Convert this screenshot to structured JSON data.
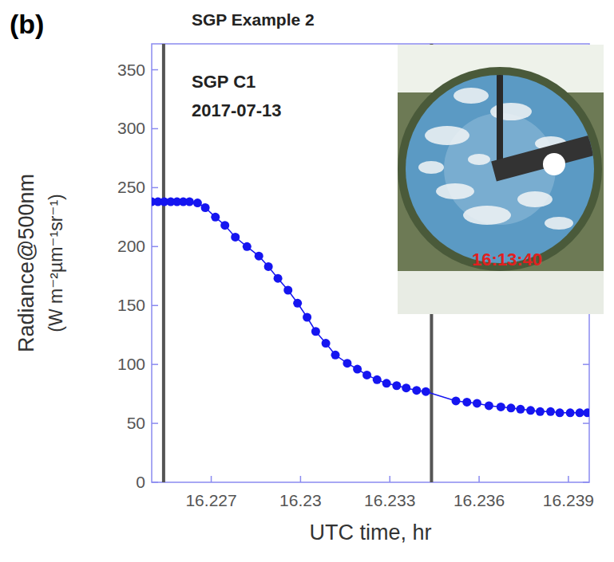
{
  "chart_data": {
    "type": "line",
    "panel_label": "(b)",
    "title": "SGP Example 2",
    "annotations": [
      "SGP C1",
      "2017-07-13"
    ],
    "inset_time": "16:13:40",
    "xlabel": "UTC time, hr",
    "ylabel": [
      "Radiance@500nm",
      "(W m⁻²µm⁻¹sr⁻¹)"
    ],
    "xlim": [
      16.225,
      16.2397
    ],
    "xticks": [
      16.227,
      16.23,
      16.233,
      16.236,
      16.239
    ],
    "ylim": [
      0,
      372
    ],
    "yticks": [
      0,
      50,
      100,
      150,
      200,
      250,
      300,
      350
    ],
    "grid": false,
    "marker": "circle",
    "line_style": "solid",
    "color": "#1515f0",
    "vertical_lines": [
      16.2254,
      16.2344
    ],
    "x": [
      16.225,
      16.22521,
      16.22542,
      16.22564,
      16.22585,
      16.22606,
      16.22627,
      16.22654,
      16.2268,
      16.22714,
      16.22746,
      16.22781,
      16.2282,
      16.2286,
      16.22892,
      16.22924,
      16.22958,
      16.2299,
      16.23022,
      16.23051,
      16.23085,
      16.23117,
      16.23157,
      16.23191,
      16.23223,
      16.23257,
      16.23289,
      16.23323,
      16.23355,
      16.2339,
      16.23421,
      16.23522,
      16.23559,
      16.23593,
      16.23633,
      16.23673,
      16.23707,
      16.23739,
      16.23773,
      16.23805,
      16.2384,
      16.23871,
      16.23906,
      16.23938,
      16.23964
    ],
    "values": [
      238,
      238,
      238,
      238,
      238,
      238,
      238,
      237,
      233,
      225,
      218,
      208,
      200,
      192,
      183,
      173,
      163,
      152,
      140,
      128,
      118,
      108,
      101,
      96,
      91,
      87,
      84,
      82,
      80,
      78,
      77,
      69,
      68,
      67,
      65,
      64,
      63,
      62,
      61,
      60,
      60,
      59,
      59,
      59,
      59
    ]
  }
}
